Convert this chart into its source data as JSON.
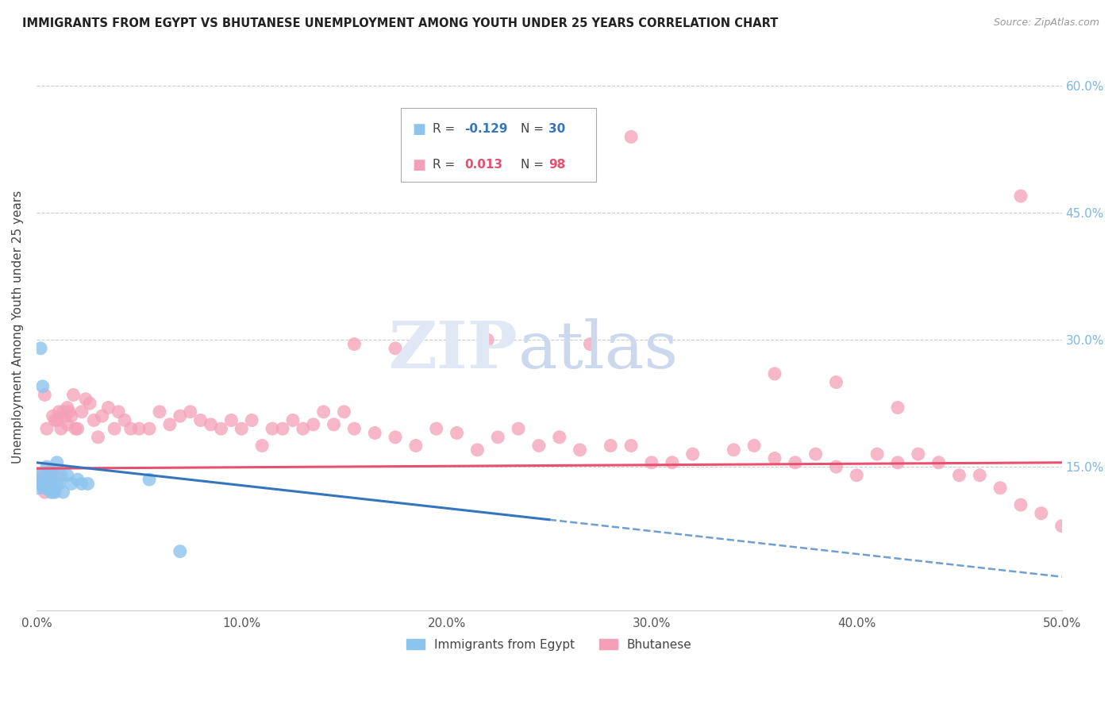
{
  "title": "IMMIGRANTS FROM EGYPT VS BHUTANESE UNEMPLOYMENT AMONG YOUTH UNDER 25 YEARS CORRELATION CHART",
  "source": "Source: ZipAtlas.com",
  "ylabel": "Unemployment Among Youth under 25 years",
  "xlim": [
    0.0,
    0.5
  ],
  "ylim": [
    -0.02,
    0.65
  ],
  "xtick_vals": [
    0.0,
    0.1,
    0.2,
    0.3,
    0.4,
    0.5
  ],
  "xtick_labels": [
    "0.0%",
    "10.0%",
    "20.0%",
    "30.0%",
    "40.0%",
    "50.0%"
  ],
  "ytick_vals": [
    0.15,
    0.3,
    0.45,
    0.6
  ],
  "ytick_labels": [
    "15.0%",
    "30.0%",
    "45.0%",
    "60.0%"
  ],
  "egypt_R": -0.129,
  "egypt_N": 30,
  "bhutan_R": 0.013,
  "bhutan_N": 98,
  "egypt_color": "#8DC4EE",
  "bhutan_color": "#F4A0B8",
  "egypt_trend_color": "#3575BE",
  "bhutan_trend_color": "#E85070",
  "egypt_trend_solid_end": 0.25,
  "egypt_trend_x0": 0.0,
  "egypt_trend_x1": 0.5,
  "egypt_trend_y0": 0.155,
  "egypt_trend_y1": 0.02,
  "bhutan_trend_x0": 0.0,
  "bhutan_trend_x1": 0.5,
  "bhutan_trend_y0": 0.148,
  "bhutan_trend_y1": 0.155,
  "egypt_x": [
    0.001,
    0.001,
    0.002,
    0.002,
    0.003,
    0.003,
    0.004,
    0.004,
    0.005,
    0.005,
    0.006,
    0.006,
    0.007,
    0.007,
    0.008,
    0.008,
    0.009,
    0.009,
    0.01,
    0.01,
    0.011,
    0.012,
    0.013,
    0.015,
    0.017,
    0.02,
    0.022,
    0.025,
    0.055,
    0.07
  ],
  "egypt_y": [
    0.13,
    0.125,
    0.14,
    0.29,
    0.245,
    0.13,
    0.135,
    0.125,
    0.15,
    0.13,
    0.14,
    0.125,
    0.12,
    0.13,
    0.14,
    0.12,
    0.125,
    0.12,
    0.155,
    0.13,
    0.13,
    0.14,
    0.12,
    0.14,
    0.13,
    0.135,
    0.13,
    0.13,
    0.135,
    0.05
  ],
  "bhutan_x": [
    0.002,
    0.003,
    0.004,
    0.004,
    0.005,
    0.006,
    0.007,
    0.007,
    0.008,
    0.009,
    0.01,
    0.01,
    0.011,
    0.012,
    0.013,
    0.014,
    0.015,
    0.015,
    0.016,
    0.017,
    0.018,
    0.019,
    0.02,
    0.022,
    0.024,
    0.026,
    0.028,
    0.03,
    0.032,
    0.035,
    0.038,
    0.04,
    0.043,
    0.046,
    0.05,
    0.055,
    0.06,
    0.065,
    0.07,
    0.075,
    0.08,
    0.085,
    0.09,
    0.095,
    0.1,
    0.105,
    0.11,
    0.115,
    0.12,
    0.125,
    0.13,
    0.135,
    0.14,
    0.145,
    0.15,
    0.155,
    0.165,
    0.175,
    0.185,
    0.195,
    0.205,
    0.215,
    0.225,
    0.235,
    0.245,
    0.255,
    0.265,
    0.27,
    0.28,
    0.29,
    0.3,
    0.31,
    0.32,
    0.34,
    0.35,
    0.36,
    0.37,
    0.38,
    0.39,
    0.4,
    0.41,
    0.42,
    0.43,
    0.44,
    0.45,
    0.46,
    0.47,
    0.48,
    0.49,
    0.5,
    0.175,
    0.155,
    0.22,
    0.29,
    0.36,
    0.39,
    0.48,
    0.42
  ],
  "bhutan_y": [
    0.135,
    0.14,
    0.12,
    0.235,
    0.195,
    0.14,
    0.13,
    0.145,
    0.21,
    0.205,
    0.14,
    0.205,
    0.215,
    0.195,
    0.215,
    0.21,
    0.2,
    0.22,
    0.215,
    0.21,
    0.235,
    0.195,
    0.195,
    0.215,
    0.23,
    0.225,
    0.205,
    0.185,
    0.21,
    0.22,
    0.195,
    0.215,
    0.205,
    0.195,
    0.195,
    0.195,
    0.215,
    0.2,
    0.21,
    0.215,
    0.205,
    0.2,
    0.195,
    0.205,
    0.195,
    0.205,
    0.175,
    0.195,
    0.195,
    0.205,
    0.195,
    0.2,
    0.215,
    0.2,
    0.215,
    0.195,
    0.19,
    0.185,
    0.175,
    0.195,
    0.19,
    0.17,
    0.185,
    0.195,
    0.175,
    0.185,
    0.17,
    0.295,
    0.175,
    0.175,
    0.155,
    0.155,
    0.165,
    0.17,
    0.175,
    0.16,
    0.155,
    0.165,
    0.15,
    0.14,
    0.165,
    0.155,
    0.165,
    0.155,
    0.14,
    0.14,
    0.125,
    0.105,
    0.095,
    0.08,
    0.29,
    0.295,
    0.3,
    0.54,
    0.26,
    0.25,
    0.47,
    0.22
  ]
}
